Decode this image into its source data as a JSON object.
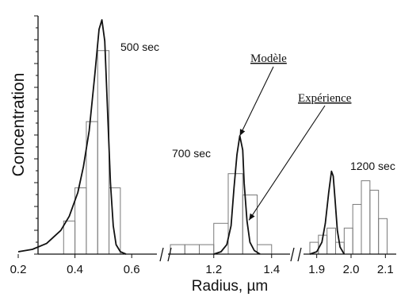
{
  "chart_data": {
    "type": "bar",
    "xlabel": "Radius, µm",
    "ylabel": "Concentration",
    "ylim": [
      0,
      1
    ],
    "x_segments": [
      {
        "xlim": [
          0.2,
          0.7
        ],
        "ticks": [
          "0.2",
          "0.4",
          "0.6"
        ],
        "tick_values": [
          0.2,
          0.4,
          0.6
        ]
      },
      {
        "xlim": [
          1.05,
          1.45
        ],
        "ticks": [
          "1.2",
          "1.4"
        ],
        "tick_values": [
          1.2,
          1.4
        ]
      },
      {
        "xlim": [
          1.85,
          2.12
        ],
        "ticks": [
          "1.9",
          "2.0",
          "2.1"
        ],
        "tick_values": [
          1.9,
          2.0,
          2.1
        ]
      }
    ],
    "series": [
      {
        "name": "Expérience",
        "type": "histogram",
        "groups": [
          {
            "label": "500 sec",
            "bins": [
              {
                "x0": 0.36,
                "x1": 0.4,
                "value": 0.14
              },
              {
                "x0": 0.4,
                "x1": 0.44,
                "value": 0.28
              },
              {
                "x0": 0.44,
                "x1": 0.48,
                "value": 0.56
              },
              {
                "x0": 0.48,
                "x1": 0.52,
                "value": 0.86
              },
              {
                "x0": 0.52,
                "x1": 0.56,
                "value": 0.28
              }
            ]
          },
          {
            "label": "700 sec",
            "bins": [
              {
                "x0": 1.05,
                "x1": 1.1,
                "value": 0.04
              },
              {
                "x0": 1.1,
                "x1": 1.15,
                "value": 0.04
              },
              {
                "x0": 1.15,
                "x1": 1.2,
                "value": 0.04
              },
              {
                "x0": 1.2,
                "x1": 1.25,
                "value": 0.13
              },
              {
                "x0": 1.25,
                "x1": 1.3,
                "value": 0.34
              },
              {
                "x0": 1.3,
                "x1": 1.35,
                "value": 0.25
              },
              {
                "x0": 1.35,
                "x1": 1.4,
                "value": 0.04
              }
            ]
          },
          {
            "label": "1200 sec",
            "bins": [
              {
                "x0": 1.88,
                "x1": 1.905,
                "value": 0.05
              },
              {
                "x0": 1.905,
                "x1": 1.93,
                "value": 0.08
              },
              {
                "x0": 1.93,
                "x1": 1.955,
                "value": 0.11
              },
              {
                "x0": 1.955,
                "x1": 1.98,
                "value": 0.05
              },
              {
                "x0": 1.98,
                "x1": 2.005,
                "value": 0.11
              },
              {
                "x0": 2.005,
                "x1": 2.03,
                "value": 0.21
              },
              {
                "x0": 2.03,
                "x1": 2.055,
                "value": 0.31
              },
              {
                "x0": 2.055,
                "x1": 2.08,
                "value": 0.27
              },
              {
                "x0": 2.08,
                "x1": 2.105,
                "value": 0.15
              }
            ]
          }
        ]
      },
      {
        "name": "Modèle",
        "type": "line",
        "groups": [
          {
            "label": "500 sec",
            "points": [
              [
                0.2,
                0.01
              ],
              [
                0.25,
                0.02
              ],
              [
                0.3,
                0.045
              ],
              [
                0.35,
                0.1
              ],
              [
                0.38,
                0.16
              ],
              [
                0.41,
                0.26
              ],
              [
                0.43,
                0.37
              ],
              [
                0.45,
                0.52
              ],
              [
                0.47,
                0.76
              ],
              [
                0.485,
                0.95
              ],
              [
                0.495,
                0.99
              ],
              [
                0.505,
                0.9
              ],
              [
                0.515,
                0.6
              ],
              [
                0.525,
                0.3
              ],
              [
                0.535,
                0.12
              ],
              [
                0.545,
                0.04
              ],
              [
                0.56,
                0.01
              ],
              [
                0.58,
                0.0
              ]
            ]
          },
          {
            "label": "700 sec",
            "points": [
              [
                1.2,
                0.0
              ],
              [
                1.225,
                0.01
              ],
              [
                1.245,
                0.04
              ],
              [
                1.26,
                0.12
              ],
              [
                1.27,
                0.28
              ],
              [
                1.28,
                0.42
              ],
              [
                1.29,
                0.5
              ],
              [
                1.3,
                0.44
              ],
              [
                1.305,
                0.3
              ],
              [
                1.315,
                0.14
              ],
              [
                1.325,
                0.05
              ],
              [
                1.34,
                0.015
              ],
              [
                1.36,
                0.0
              ]
            ]
          },
          {
            "label": "1200 sec",
            "points": [
              [
                1.88,
                0.0
              ],
              [
                1.9,
                0.01
              ],
              [
                1.915,
                0.05
              ],
              [
                1.925,
                0.13
              ],
              [
                1.935,
                0.26
              ],
              [
                1.943,
                0.35
              ],
              [
                1.948,
                0.33
              ],
              [
                1.953,
                0.24
              ],
              [
                1.96,
                0.1
              ],
              [
                1.968,
                0.03
              ],
              [
                1.98,
                0.0
              ]
            ]
          }
        ]
      }
    ],
    "annotations": [
      {
        "text": "500 sec",
        "target_series": "Modèle",
        "group": "500 sec"
      },
      {
        "text": "700 sec",
        "target_series": "Modèle",
        "group": "700 sec"
      },
      {
        "text": "1200 sec",
        "target_series": "Expérience",
        "group": "1200 sec"
      },
      {
        "text": "Modèle",
        "arrow_to": [
          1.29,
          0.5
        ]
      },
      {
        "text": "Expérience",
        "arrow_to": [
          1.33,
          0.13
        ]
      }
    ],
    "grid": false,
    "legend": "none"
  }
}
